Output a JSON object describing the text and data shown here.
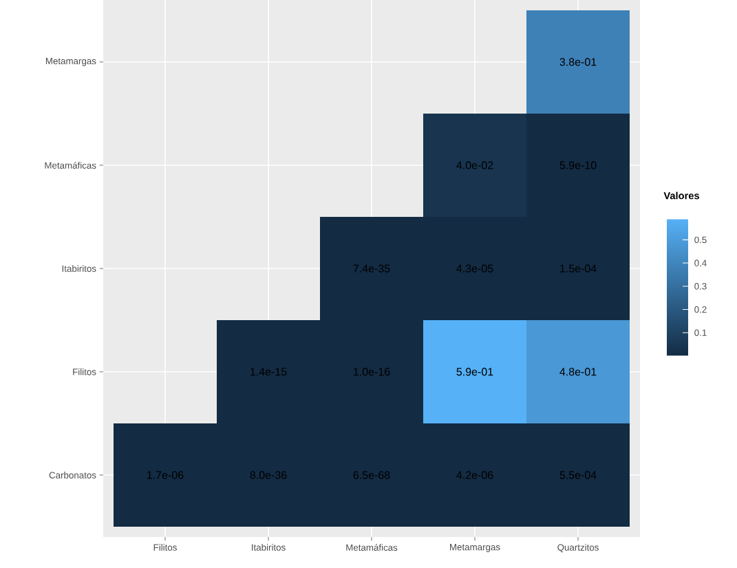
{
  "chart_data": {
    "type": "heatmap",
    "categories": [
      "Filitos",
      "Itabiritos",
      "Metamáficas",
      "Metamargas",
      "Quartzitos"
    ],
    "y_categories": [
      "Metamargas",
      "Metamáficas",
      "Itabiritos",
      "Filitos",
      "Carbonatos"
    ],
    "cells": [
      [
        null,
        null,
        null,
        null,
        0.38
      ],
      [
        null,
        null,
        null,
        0.04,
        5.9e-10
      ],
      [
        null,
        null,
        7.4e-35,
        4.3e-05,
        0.00015
      ],
      [
        null,
        1.4e-15,
        1e-16,
        0.59,
        0.48
      ],
      [
        1.7e-06,
        8e-36,
        6.5e-68,
        4.2e-06,
        0.00055
      ]
    ],
    "cell_labels": [
      [
        null,
        null,
        null,
        null,
        "3.8e-01"
      ],
      [
        null,
        null,
        null,
        "4.0e-02",
        "5.9e-10"
      ],
      [
        null,
        null,
        "7.4e-35",
        "4.3e-05",
        "1.5e-04"
      ],
      [
        null,
        "1.4e-15",
        "1.0e-16",
        "5.9e-01",
        "4.8e-01"
      ],
      [
        "1.7e-06",
        "8.0e-36",
        "6.5e-68",
        "4.2e-06",
        "5.5e-04"
      ]
    ],
    "clabel": "Valores",
    "clim": [
      0,
      0.59
    ],
    "cticks": [
      0.1,
      0.2,
      0.3,
      0.4,
      0.5
    ],
    "grid": true
  }
}
